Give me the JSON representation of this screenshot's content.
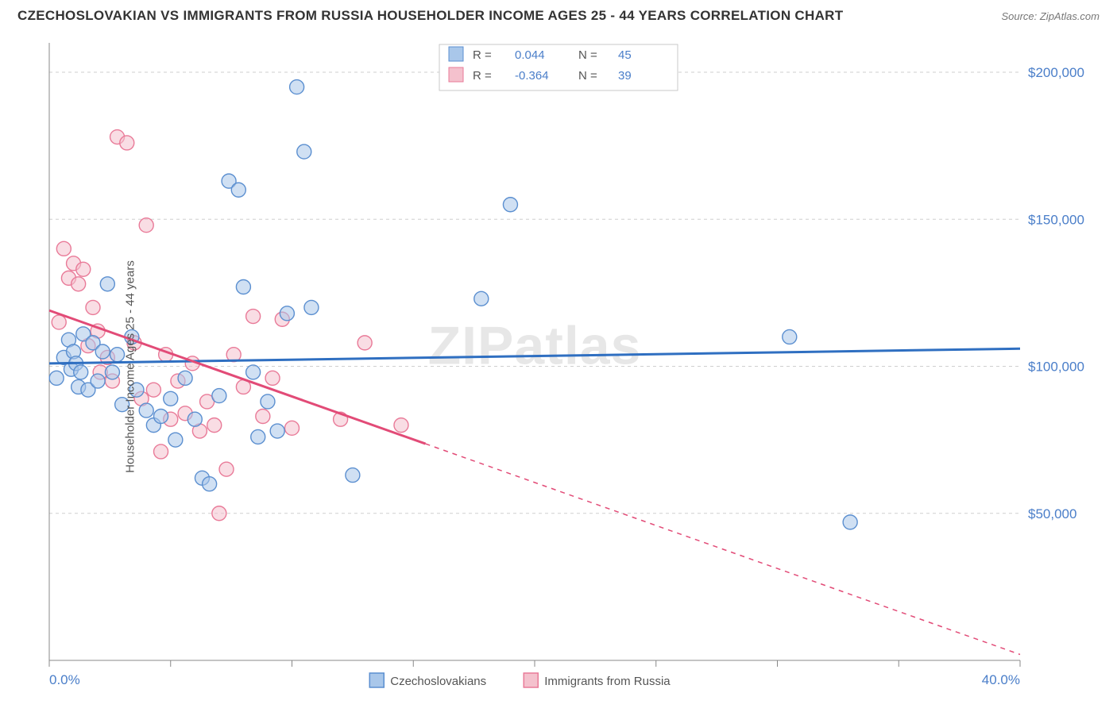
{
  "title": "CZECHOSLOVAKIAN VS IMMIGRANTS FROM RUSSIA HOUSEHOLDER INCOME AGES 25 - 44 YEARS CORRELATION CHART",
  "source_label": "Source: ",
  "source_value": "ZipAtlas.com",
  "ylabel": "Householder Income Ages 25 - 44 years",
  "watermark": "ZIPatlas",
  "chart": {
    "type": "scatter",
    "background_color": "#ffffff",
    "grid_color": "#cfcfcf",
    "xlim": [
      0,
      40
    ],
    "ylim": [
      0,
      210000
    ],
    "xtick_positions": [
      0,
      5,
      10,
      15,
      20,
      25,
      30,
      35,
      40
    ],
    "xtick_labels_shown": {
      "0": "0.0%",
      "40": "40.0%"
    },
    "ytick_positions": [
      50000,
      100000,
      150000,
      200000
    ],
    "ytick_labels": [
      "$50,000",
      "$100,000",
      "$150,000",
      "$200,000"
    ],
    "marker_radius": 9,
    "marker_opacity": 0.55,
    "series": [
      {
        "name": "Czechoslovakians",
        "color_fill": "#a9c7ea",
        "color_stroke": "#5b8fd0",
        "R": "0.044",
        "N": "45",
        "trend": {
          "x1": 0,
          "y1": 101000,
          "x2": 40,
          "y2": 106000,
          "solid_until_x": 40,
          "color": "#2f6fc1",
          "width": 3
        },
        "points": [
          [
            0.3,
            96000
          ],
          [
            0.6,
            103000
          ],
          [
            0.8,
            109000
          ],
          [
            0.9,
            99000
          ],
          [
            1.0,
            105000
          ],
          [
            1.1,
            101000
          ],
          [
            1.2,
            93000
          ],
          [
            1.3,
            98000
          ],
          [
            1.4,
            111000
          ],
          [
            1.6,
            92000
          ],
          [
            1.8,
            108000
          ],
          [
            2.0,
            95000
          ],
          [
            2.2,
            105000
          ],
          [
            2.4,
            128000
          ],
          [
            2.6,
            98000
          ],
          [
            2.8,
            104000
          ],
          [
            3.0,
            87000
          ],
          [
            3.4,
            110000
          ],
          [
            3.6,
            92000
          ],
          [
            4.0,
            85000
          ],
          [
            4.3,
            80000
          ],
          [
            4.6,
            83000
          ],
          [
            5.0,
            89000
          ],
          [
            5.2,
            75000
          ],
          [
            5.6,
            96000
          ],
          [
            6.0,
            82000
          ],
          [
            6.3,
            62000
          ],
          [
            6.6,
            60000
          ],
          [
            7.0,
            90000
          ],
          [
            7.4,
            163000
          ],
          [
            7.8,
            160000
          ],
          [
            8.0,
            127000
          ],
          [
            8.4,
            98000
          ],
          [
            8.6,
            76000
          ],
          [
            9.0,
            88000
          ],
          [
            9.4,
            78000
          ],
          [
            9.8,
            118000
          ],
          [
            10.2,
            195000
          ],
          [
            10.5,
            173000
          ],
          [
            10.8,
            120000
          ],
          [
            12.5,
            63000
          ],
          [
            17.8,
            123000
          ],
          [
            19.0,
            155000
          ],
          [
            30.5,
            110000
          ],
          [
            33.0,
            47000
          ]
        ]
      },
      {
        "name": "Immigrants from Russia",
        "color_fill": "#f4c1cd",
        "color_stroke": "#e97a98",
        "R": "-0.364",
        "N": "39",
        "trend": {
          "x1": 0,
          "y1": 119000,
          "x2": 40,
          "y2": 2000,
          "solid_until_x": 15.5,
          "color": "#e24b77",
          "width": 3
        },
        "points": [
          [
            0.4,
            115000
          ],
          [
            0.6,
            140000
          ],
          [
            0.8,
            130000
          ],
          [
            1.0,
            135000
          ],
          [
            1.2,
            128000
          ],
          [
            1.4,
            133000
          ],
          [
            1.6,
            107000
          ],
          [
            1.8,
            120000
          ],
          [
            2.0,
            112000
          ],
          [
            2.1,
            98000
          ],
          [
            2.4,
            103000
          ],
          [
            2.6,
            95000
          ],
          [
            2.8,
            178000
          ],
          [
            3.2,
            176000
          ],
          [
            3.5,
            108000
          ],
          [
            3.8,
            89000
          ],
          [
            4.0,
            148000
          ],
          [
            4.3,
            92000
          ],
          [
            4.6,
            71000
          ],
          [
            4.8,
            104000
          ],
          [
            5.0,
            82000
          ],
          [
            5.3,
            95000
          ],
          [
            5.6,
            84000
          ],
          [
            5.9,
            101000
          ],
          [
            6.2,
            78000
          ],
          [
            6.5,
            88000
          ],
          [
            6.8,
            80000
          ],
          [
            7.0,
            50000
          ],
          [
            7.3,
            65000
          ],
          [
            7.6,
            104000
          ],
          [
            8.0,
            93000
          ],
          [
            8.4,
            117000
          ],
          [
            8.8,
            83000
          ],
          [
            9.2,
            96000
          ],
          [
            9.6,
            116000
          ],
          [
            10.0,
            79000
          ],
          [
            12.0,
            82000
          ],
          [
            13.0,
            108000
          ],
          [
            14.5,
            80000
          ]
        ]
      }
    ],
    "rn_box": {
      "border_color": "#c9c9c9",
      "label_R": "R =",
      "label_N": "N ="
    },
    "bottom_legend": [
      {
        "label": "Czechoslovakians",
        "fill": "#a9c7ea",
        "stroke": "#5b8fd0"
      },
      {
        "label": "Immigrants from Russia",
        "fill": "#f4c1cd",
        "stroke": "#e97a98"
      }
    ]
  }
}
